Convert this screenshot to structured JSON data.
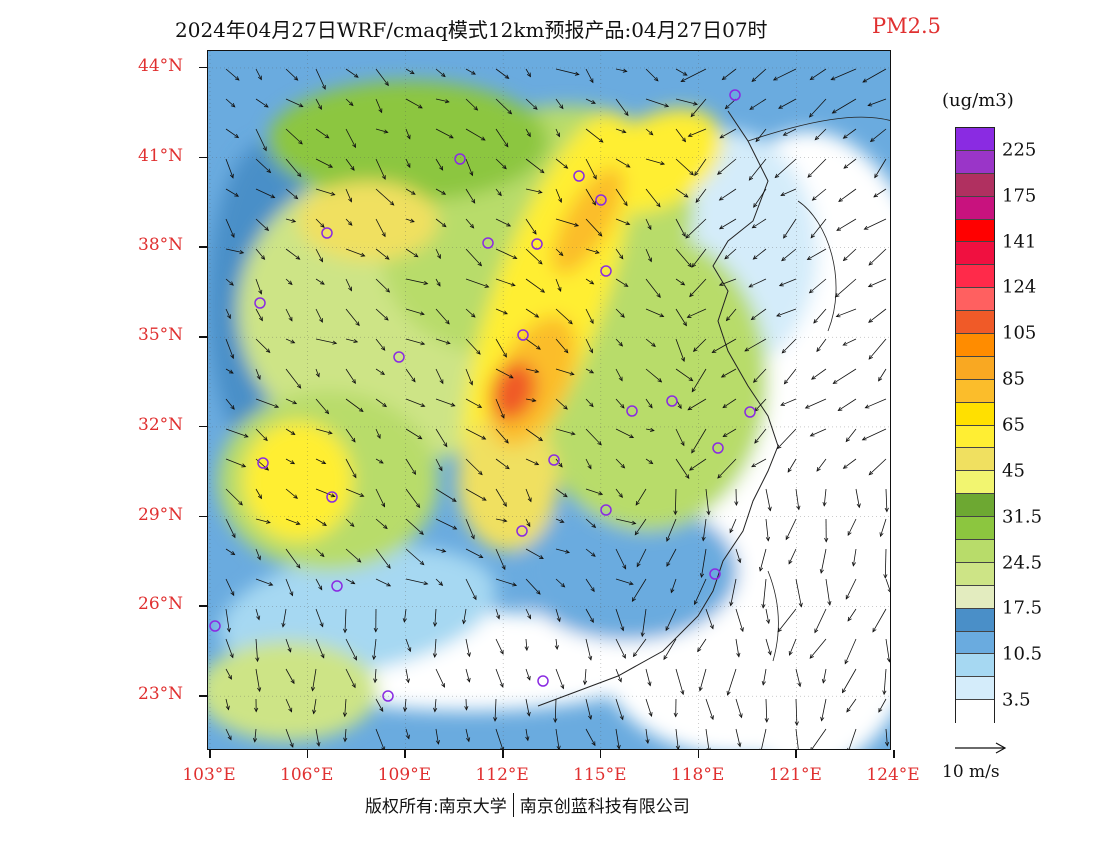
{
  "title": {
    "main": "2024年04月27日WRF/cmaq模式12km预报产品:04月27日07时",
    "pollutant": "PM2.5"
  },
  "map": {
    "lat_labels": [
      "44°N",
      "41°N",
      "38°N",
      "35°N",
      "32°N",
      "29°N",
      "26°N",
      "23°N"
    ],
    "lon_labels": [
      "103°E",
      "106°E",
      "109°E",
      "112°E",
      "115°E",
      "118°E",
      "121°E",
      "124°E"
    ],
    "station_marker_color": "#8a2be2",
    "vector_color": "#111111"
  },
  "legend": {
    "unit": "(ug/m3)",
    "colors": [
      "#8a2be2",
      "#9a35c8",
      "#b03060",
      "#c8127e",
      "#ff0000",
      "#f01040",
      "#ff2a4a",
      "#ff6060",
      "#f05a28",
      "#ff8c00",
      "#f9a822",
      "#fbbd2b",
      "#ffe000",
      "#ffee33",
      "#f0e060",
      "#f2f570",
      "#6da832",
      "#8cc63f",
      "#b8dc6a",
      "#cde486",
      "#e3ecbf",
      "#4a8fc8",
      "#6aabdf",
      "#a6d8f2",
      "#d4ecfa",
      "#ffffff"
    ],
    "labels": [
      "225",
      "175",
      "141",
      "124",
      "105",
      "85",
      "65",
      "45",
      "31.5",
      "24.5",
      "17.5",
      "10.5",
      "3.5"
    ]
  },
  "wind_reference": {
    "label": "10 m/s"
  },
  "copyright": {
    "left": "版权所有:南京大学",
    "right": "南京创蓝科技有限公司"
  }
}
